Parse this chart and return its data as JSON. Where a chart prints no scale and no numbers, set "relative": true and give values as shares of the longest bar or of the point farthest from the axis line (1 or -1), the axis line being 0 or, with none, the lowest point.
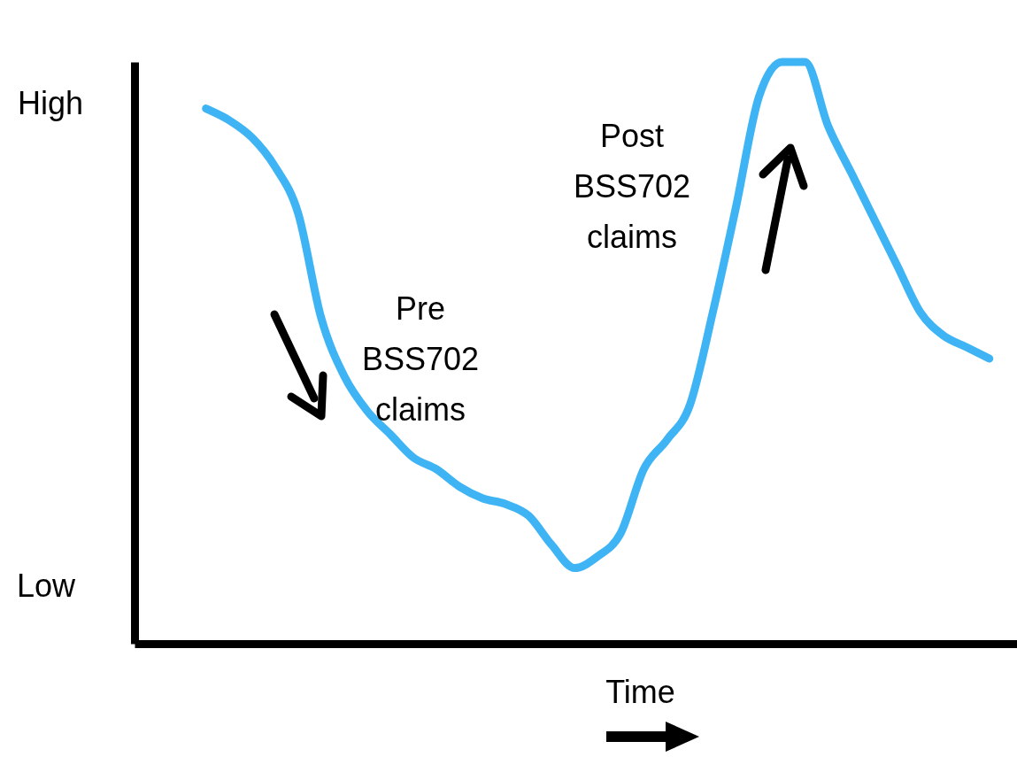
{
  "chart_data": {
    "type": "line",
    "relative": true,
    "xlabel": "Time",
    "categories": [
      null,
      null,
      null,
      null,
      null,
      null,
      null,
      null,
      null,
      null,
      null,
      null,
      null,
      null,
      null,
      null,
      null,
      null,
      null,
      null,
      null,
      null,
      null,
      null,
      null,
      null,
      null,
      null,
      null,
      null,
      null,
      null,
      null,
      null,
      null
    ],
    "series": [
      {
        "color": "#3fb4f5",
        "values": [
          0.92,
          0.9,
          0.87,
          0.82,
          0.74,
          0.56,
          0.46,
          0.4,
          0.36,
          0.32,
          0.3,
          0.27,
          0.25,
          0.24,
          0.22,
          0.17,
          0.13,
          0.15,
          0.19,
          0.3,
          0.35,
          0.41,
          0.57,
          0.75,
          0.94,
          1.0,
          1.0,
          0.89,
          0.81,
          0.73,
          0.65,
          0.57,
          0.53,
          0.51,
          0.49
        ]
      }
    ],
    "annotations": [
      "High",
      "Low",
      "Pre\nBSS702\nclaims",
      "Post\nBSS702\nclaims"
    ],
    "grid": false,
    "legend": false
  }
}
